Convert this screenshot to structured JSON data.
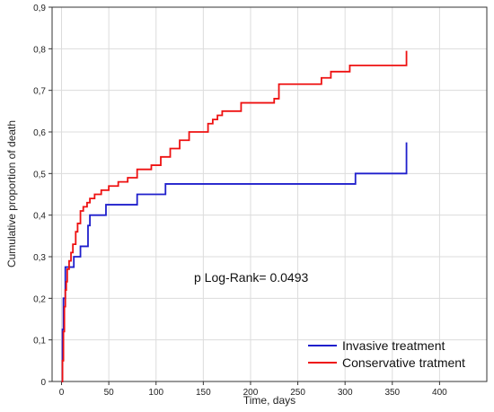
{
  "chart_data": {
    "type": "line",
    "xlabel": "Time, days",
    "ylabel": "Cumulative proportion of death",
    "xlim": [
      -10,
      450
    ],
    "ylim": [
      0,
      0.9
    ],
    "x_ticks": [
      0,
      50,
      100,
      150,
      200,
      250,
      300,
      350,
      400
    ],
    "x_tick_labels": [
      "0",
      "50",
      "100",
      "150",
      "200",
      "250",
      "300",
      "350",
      "400"
    ],
    "y_ticks": [
      0,
      0.1,
      0.2,
      0.3,
      0.4,
      0.5,
      0.6,
      0.7,
      0.8,
      0.9
    ],
    "y_tick_labels": [
      "0",
      "0,1",
      "0,2",
      "0,3",
      "0,4",
      "0,5",
      "0,6",
      "0,7",
      "0,8",
      "0,9"
    ],
    "grid": true,
    "legend_position": "bottom-right",
    "annotation": "p Log-Rank= 0.0493",
    "series": [
      {
        "name": "Invasive treatment",
        "color": "#1f1fcc",
        "step": true,
        "x": [
          0,
          1,
          2,
          4,
          13,
          20,
          28,
          30,
          47,
          80,
          110,
          311,
          365,
          365
        ],
        "y": [
          0,
          0.125,
          0.2,
          0.275,
          0.3,
          0.325,
          0.375,
          0.4,
          0.425,
          0.45,
          0.475,
          0.5,
          0.5,
          0.575
        ]
      },
      {
        "name": "Conservative tratment",
        "color": "#ee1111",
        "step": true,
        "x": [
          0,
          1,
          2,
          3,
          4,
          5,
          6,
          8,
          10,
          12,
          15,
          17,
          20,
          23,
          27,
          30,
          35,
          42,
          50,
          60,
          70,
          80,
          95,
          105,
          115,
          125,
          135,
          155,
          160,
          165,
          170,
          190,
          225,
          230,
          275,
          285,
          305,
          365,
          365
        ],
        "y": [
          0,
          0.05,
          0.12,
          0.18,
          0.22,
          0.24,
          0.27,
          0.29,
          0.31,
          0.33,
          0.36,
          0.38,
          0.41,
          0.42,
          0.43,
          0.44,
          0.45,
          0.46,
          0.47,
          0.48,
          0.49,
          0.51,
          0.52,
          0.54,
          0.56,
          0.58,
          0.6,
          0.62,
          0.63,
          0.64,
          0.65,
          0.67,
          0.68,
          0.715,
          0.73,
          0.745,
          0.76,
          0.76,
          0.795
        ]
      }
    ]
  }
}
